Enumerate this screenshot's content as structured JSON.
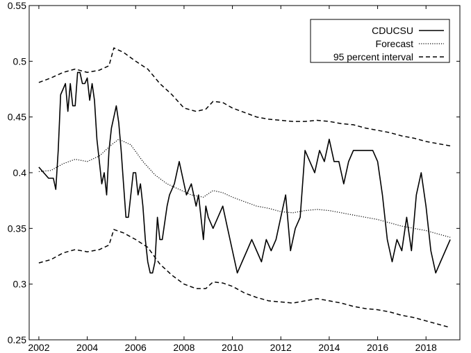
{
  "chart_data": {
    "type": "line",
    "title": "",
    "xlabel": "",
    "ylabel": "",
    "xlim": [
      2001.6,
      2019.4
    ],
    "ylim": [
      0.25,
      0.55
    ],
    "xticks": [
      "2002",
      "2004",
      "2006",
      "2008",
      "2010",
      "2012",
      "2014",
      "2016",
      "2018"
    ],
    "xtick_values": [
      2002,
      2004,
      2006,
      2008,
      2010,
      2012,
      2014,
      2016,
      2018
    ],
    "yticks": [
      "0.25",
      "0.3",
      "0.35",
      "0.4",
      "0.45",
      "0.5",
      "0.55"
    ],
    "ytick_values": [
      0.25,
      0.3,
      0.35,
      0.4,
      0.45,
      0.5,
      0.55
    ],
    "grid": false,
    "legend_position": "top-right",
    "series": [
      {
        "name": "CDUCSU",
        "style": "solid",
        "x": [
          2002.0,
          2002.2,
          2002.4,
          2002.6,
          2002.7,
          2002.8,
          2002.9,
          2003.0,
          2003.1,
          2003.2,
          2003.3,
          2003.4,
          2003.5,
          2003.6,
          2003.7,
          2003.8,
          2003.9,
          2004.0,
          2004.1,
          2004.2,
          2004.3,
          2004.4,
          2004.5,
          2004.6,
          2004.7,
          2004.8,
          2004.9,
          2005.0,
          2005.1,
          2005.2,
          2005.3,
          2005.4,
          2005.5,
          2005.6,
          2005.7,
          2005.8,
          2005.9,
          2006.0,
          2006.1,
          2006.2,
          2006.3,
          2006.4,
          2006.5,
          2006.6,
          2006.7,
          2006.8,
          2006.9,
          2007.0,
          2007.1,
          2007.3,
          2007.4,
          2007.6,
          2007.8,
          2008.0,
          2008.1,
          2008.3,
          2008.5,
          2008.6,
          2008.8,
          2008.9,
          2009.0,
          2009.2,
          2009.4,
          2009.6,
          2009.8,
          2010.0,
          2010.2,
          2010.4,
          2010.6,
          2010.8,
          2011.0,
          2011.2,
          2011.4,
          2011.6,
          2011.8,
          2012.0,
          2012.2,
          2012.4,
          2012.6,
          2012.8,
          2013.0,
          2013.2,
          2013.4,
          2013.6,
          2013.8,
          2014.0,
          2014.2,
          2014.4,
          2014.6,
          2014.8,
          2015.0,
          2015.2,
          2015.4,
          2015.6,
          2015.8,
          2016.0,
          2016.2,
          2016.4,
          2016.6,
          2016.8,
          2017.0,
          2017.2,
          2017.4,
          2017.6,
          2017.8,
          2018.0,
          2018.2,
          2018.4,
          2018.6,
          2018.8,
          2019.0
        ],
        "values": [
          0.405,
          0.4,
          0.395,
          0.395,
          0.385,
          0.42,
          0.47,
          0.475,
          0.48,
          0.455,
          0.48,
          0.46,
          0.46,
          0.49,
          0.49,
          0.48,
          0.48,
          0.485,
          0.465,
          0.48,
          0.465,
          0.43,
          0.41,
          0.39,
          0.4,
          0.38,
          0.42,
          0.44,
          0.45,
          0.46,
          0.445,
          0.42,
          0.39,
          0.36,
          0.36,
          0.38,
          0.4,
          0.4,
          0.38,
          0.39,
          0.37,
          0.34,
          0.32,
          0.31,
          0.31,
          0.32,
          0.36,
          0.34,
          0.34,
          0.37,
          0.38,
          0.39,
          0.41,
          0.39,
          0.38,
          0.39,
          0.37,
          0.38,
          0.34,
          0.37,
          0.36,
          0.35,
          0.36,
          0.37,
          0.35,
          0.33,
          0.31,
          0.32,
          0.33,
          0.34,
          0.33,
          0.32,
          0.34,
          0.33,
          0.34,
          0.36,
          0.38,
          0.33,
          0.35,
          0.36,
          0.42,
          0.41,
          0.4,
          0.42,
          0.41,
          0.43,
          0.41,
          0.41,
          0.39,
          0.41,
          0.42,
          0.42,
          0.42,
          0.42,
          0.42,
          0.41,
          0.38,
          0.34,
          0.32,
          0.34,
          0.33,
          0.36,
          0.33,
          0.38,
          0.4,
          0.37,
          0.33,
          0.31,
          0.32,
          0.33,
          0.34
        ]
      },
      {
        "name": "Forecast",
        "style": "dotted",
        "x": [
          2002.0,
          2002.5,
          2003.0,
          2003.5,
          2004.0,
          2004.5,
          2005.0,
          2005.3,
          2005.8,
          2006.3,
          2006.8,
          2007.3,
          2007.8,
          2008.3,
          2008.8,
          2009.2,
          2009.6,
          2010.0,
          2010.5,
          2011.0,
          2011.5,
          2012.0,
          2012.5,
          2013.0,
          2013.5,
          2014.0,
          2014.5,
          2015.0,
          2015.5,
          2016.0,
          2016.5,
          2017.0,
          2017.5,
          2018.0,
          2018.5,
          2019.0
        ],
        "values": [
          0.401,
          0.402,
          0.408,
          0.412,
          0.41,
          0.415,
          0.425,
          0.43,
          0.425,
          0.41,
          0.398,
          0.39,
          0.385,
          0.38,
          0.378,
          0.384,
          0.382,
          0.378,
          0.374,
          0.37,
          0.368,
          0.365,
          0.364,
          0.366,
          0.367,
          0.366,
          0.364,
          0.362,
          0.36,
          0.358,
          0.355,
          0.352,
          0.35,
          0.348,
          0.345,
          0.342
        ]
      },
      {
        "name": "95 percent interval",
        "style": "dashed",
        "x": [
          2002.0,
          2002.5,
          2003.0,
          2003.5,
          2004.0,
          2004.5,
          2004.9,
          2005.1,
          2005.5,
          2006.0,
          2006.5,
          2007.0,
          2007.5,
          2008.0,
          2008.5,
          2008.9,
          2009.2,
          2009.6,
          2010.0,
          2010.5,
          2011.0,
          2011.5,
          2012.0,
          2012.5,
          2013.0,
          2013.5,
          2014.0,
          2014.5,
          2015.0,
          2015.5,
          2016.0,
          2016.5,
          2017.0,
          2017.5,
          2018.0,
          2018.5,
          2019.0
        ],
        "values": [
          0.481,
          0.485,
          0.49,
          0.493,
          0.49,
          0.492,
          0.496,
          0.512,
          0.508,
          0.5,
          0.493,
          0.48,
          0.47,
          0.458,
          0.455,
          0.457,
          0.464,
          0.463,
          0.458,
          0.454,
          0.45,
          0.448,
          0.447,
          0.446,
          0.446,
          0.447,
          0.446,
          0.444,
          0.443,
          0.44,
          0.438,
          0.436,
          0.433,
          0.431,
          0.428,
          0.426,
          0.424
        ]
      },
      {
        "name": "95 percent interval (lower)",
        "style": "dashed",
        "legend": false,
        "x": [
          2002.0,
          2002.5,
          2003.0,
          2003.5,
          2004.0,
          2004.5,
          2004.9,
          2005.1,
          2005.5,
          2006.0,
          2006.5,
          2007.0,
          2007.5,
          2008.0,
          2008.5,
          2008.9,
          2009.2,
          2009.6,
          2010.0,
          2010.5,
          2011.0,
          2011.5,
          2012.0,
          2012.5,
          2013.0,
          2013.5,
          2014.0,
          2014.5,
          2015.0,
          2015.5,
          2016.0,
          2016.5,
          2017.0,
          2017.5,
          2018.0,
          2018.5,
          2019.0
        ],
        "values": [
          0.319,
          0.322,
          0.328,
          0.331,
          0.329,
          0.331,
          0.335,
          0.349,
          0.346,
          0.34,
          0.333,
          0.318,
          0.308,
          0.3,
          0.296,
          0.296,
          0.302,
          0.301,
          0.298,
          0.292,
          0.288,
          0.285,
          0.284,
          0.283,
          0.285,
          0.287,
          0.285,
          0.283,
          0.28,
          0.278,
          0.277,
          0.275,
          0.272,
          0.27,
          0.267,
          0.264,
          0.261
        ]
      }
    ],
    "legend": [
      {
        "label": "CDUCSU",
        "style": "solid"
      },
      {
        "label": "Forecast",
        "style": "dotted"
      },
      {
        "label": "95 percent interval",
        "style": "dashed"
      }
    ]
  }
}
